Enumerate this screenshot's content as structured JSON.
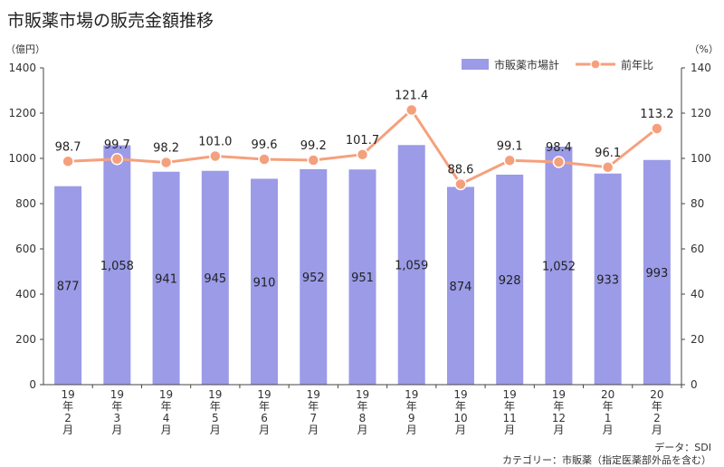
{
  "title": "市販薬市場の販売金額推移",
  "footnotes": {
    "source": "データ：SDI",
    "category": "カテゴリー：市販薬（指定医薬部外品を含む）"
  },
  "colors": {
    "bar": "#9b9be8",
    "line": "#f5a07d",
    "axis": "#444444",
    "grid": "#dddddd"
  },
  "chart_data": {
    "type": "bar",
    "categories": [
      [
        "19",
        "年",
        "2",
        "月"
      ],
      [
        "19",
        "年",
        "3",
        "月"
      ],
      [
        "19",
        "年",
        "4",
        "月"
      ],
      [
        "19",
        "年",
        "5",
        "月"
      ],
      [
        "19",
        "年",
        "6",
        "月"
      ],
      [
        "19",
        "年",
        "7",
        "月"
      ],
      [
        "19",
        "年",
        "8",
        "月"
      ],
      [
        "19",
        "年",
        "9",
        "月"
      ],
      [
        "19",
        "年",
        "10",
        "月"
      ],
      [
        "19",
        "年",
        "11",
        "月"
      ],
      [
        "19",
        "年",
        "12",
        "月"
      ],
      [
        "20",
        "年",
        "1",
        "月"
      ],
      [
        "20",
        "年",
        "2",
        "月"
      ]
    ],
    "series": [
      {
        "name": "市販薬市場計",
        "type": "bar",
        "axis": "left",
        "values": [
          877,
          1058,
          941,
          945,
          910,
          952,
          951,
          1059,
          874,
          928,
          1052,
          933,
          993
        ],
        "labels": [
          "877",
          "1,058",
          "941",
          "945",
          "910",
          "952",
          "951",
          "1,059",
          "874",
          "928",
          "1,052",
          "933",
          "993"
        ]
      },
      {
        "name": "前年比",
        "type": "line",
        "axis": "right",
        "values": [
          98.7,
          99.7,
          98.2,
          101.0,
          99.6,
          99.2,
          101.7,
          121.4,
          88.6,
          99.1,
          98.4,
          96.1,
          113.2
        ],
        "labels": [
          "98.7",
          "99.7",
          "98.2",
          "101.0",
          "99.6",
          "99.2",
          "101.7",
          "121.4",
          "88.6",
          "99.1",
          "98.4",
          "96.1",
          "113.2"
        ]
      }
    ],
    "left_axis": {
      "unit": "（億円）",
      "ylim": [
        0,
        1400
      ],
      "ticks": [
        0,
        200,
        400,
        600,
        800,
        1000,
        1200,
        1400
      ]
    },
    "right_axis": {
      "unit": "（%）",
      "ylim": [
        0,
        140
      ],
      "ticks": [
        0,
        20,
        40,
        60,
        80,
        100,
        120,
        140
      ]
    },
    "legend_position": "top-right",
    "grid": false
  }
}
